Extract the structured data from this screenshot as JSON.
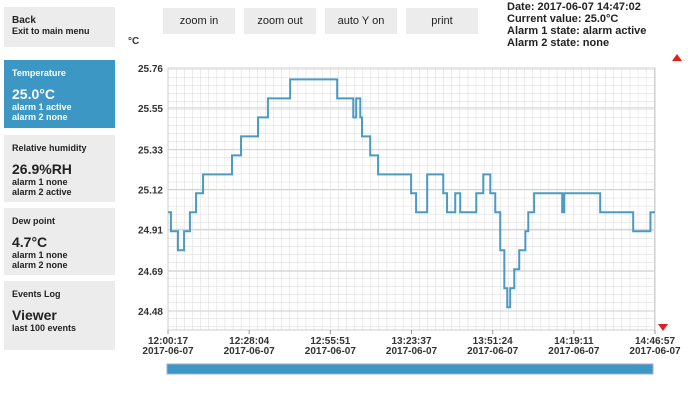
{
  "sidebar": {
    "back": {
      "title": "Back",
      "subtitle": "Exit to main menu"
    },
    "sensors": [
      {
        "name": "Temperature",
        "value": "25.0°C",
        "lines": [
          "alarm 1 active",
          "alarm 2 none"
        ]
      },
      {
        "name": "Relative humidity",
        "value": "26.9%RH",
        "lines": [
          "alarm 1 none",
          "alarm 2 active"
        ]
      },
      {
        "name": "Dew point",
        "value": "4.7°C",
        "lines": [
          "alarm 1 none",
          "alarm 2 none"
        ]
      }
    ],
    "events": {
      "title": "Events Log",
      "name": "Viewer",
      "subtitle": "last 100 events"
    }
  },
  "toolbar": [
    "zoom in",
    "zoom out",
    "auto Y on",
    "print"
  ],
  "status": [
    "Date: 2017-06-07 14:47:02",
    "Current value: 25.0°C",
    "Alarm 1 state: alarm active",
    "Alarm 2 state: none"
  ],
  "chart_data": {
    "type": "line",
    "y_unit": "°C",
    "x": [
      "12:00:17",
      "12:01:17",
      "12:03:41",
      "12:05:47",
      "12:07:47",
      "12:09:53",
      "12:12:17",
      "12:22:11",
      "12:25:17",
      "12:31:05",
      "12:34:29",
      "12:42:05",
      "12:58:11",
      "13:03:41",
      "13:04:41",
      "13:06:05",
      "13:06:41",
      "13:09:29",
      "13:12:11",
      "13:23:29",
      "13:25:11",
      "13:28:59",
      "13:34:29",
      "13:35:47",
      "13:38:35",
      "13:40:17",
      "13:45:47",
      "13:48:11",
      "13:50:35",
      "13:52:17",
      "13:53:59",
      "13:55:23",
      "13:56:23",
      "13:57:23",
      "13:58:47",
      "14:00:29",
      "14:02:35",
      "14:03:35",
      "14:05:35",
      "14:15:11",
      "14:15:53",
      "14:28:11",
      "14:39:29",
      "14:45:23",
      "14:46:57"
    ],
    "series": [
      {
        "color": "#4a9bc4",
        "step": true,
        "values": [
          25.0,
          24.9,
          24.8,
          24.9,
          25.0,
          25.1,
          25.2,
          25.3,
          25.4,
          25.5,
          25.6,
          25.7,
          25.6,
          25.5,
          25.6,
          25.5,
          25.4,
          25.3,
          25.2,
          25.1,
          25.0,
          25.2,
          25.1,
          25.0,
          25.1,
          25.0,
          25.1,
          25.2,
          25.1,
          25.0,
          24.8,
          24.6,
          24.5,
          24.6,
          24.7,
          24.8,
          24.9,
          25.0,
          25.1,
          25.0,
          25.1,
          25.0,
          24.9,
          25.0,
          25.0
        ]
      }
    ],
    "xlim": [
      "12:00:17",
      "14:46:57"
    ],
    "ylim": [
      24.38,
      25.76
    ],
    "yticks": [
      24.48,
      24.69,
      24.91,
      25.12,
      25.33,
      25.55,
      25.76
    ],
    "xticks": [
      "12:00:17",
      "12:28:04",
      "12:55:51",
      "13:23:37",
      "13:51:24",
      "14:19:11",
      "14:46:57"
    ],
    "xtick_dates": [
      "2017-06-07",
      "2017-06-07",
      "2017-06-07",
      "2017-06-07",
      "2017-06-07",
      "2017-06-07",
      "2017-06-07"
    ],
    "grid": true
  }
}
